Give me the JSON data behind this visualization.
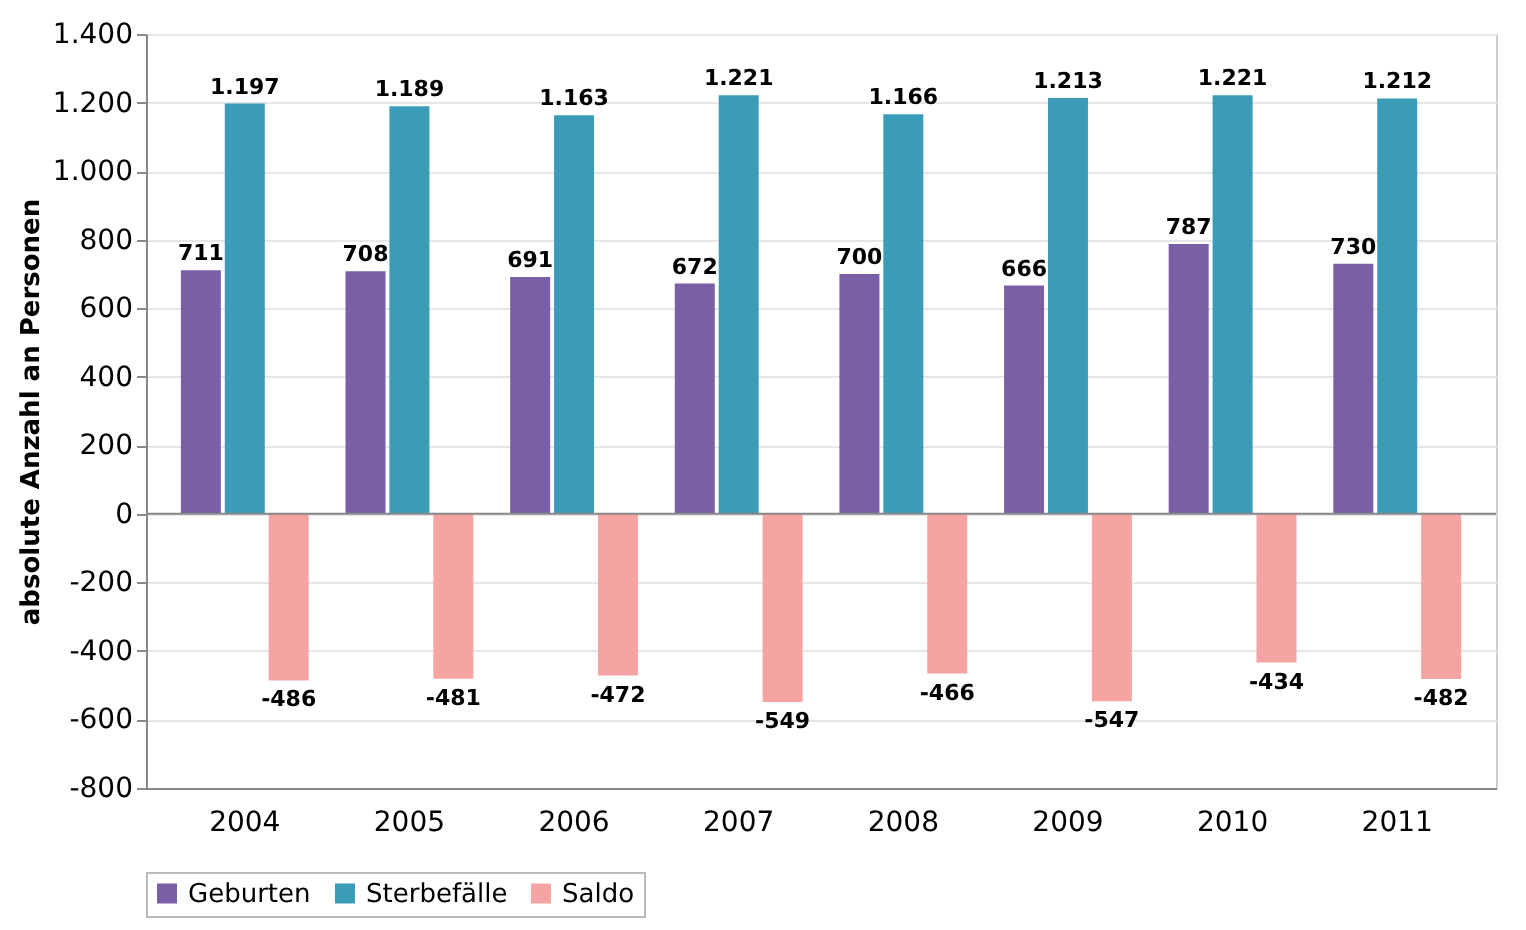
{
  "chart_data": {
    "type": "bar",
    "ylabel": "absolute Anzahl an Personen",
    "categories": [
      "2004",
      "2005",
      "2006",
      "2007",
      "2008",
      "2009",
      "2010",
      "2011"
    ],
    "series": [
      {
        "name": "Geburten",
        "color": "#7a5fa6",
        "values": [
          711,
          708,
          691,
          672,
          700,
          666,
          787,
          730
        ],
        "value_labels": [
          "711",
          "708",
          "691",
          "672",
          "700",
          "666",
          "787",
          "730"
        ]
      },
      {
        "name": "Sterbefälle",
        "color": "#3b9cb8",
        "values": [
          1197,
          1189,
          1163,
          1221,
          1166,
          1213,
          1221,
          1212
        ],
        "value_labels": [
          "1.197",
          "1.189",
          "1.163",
          "1.221",
          "1.166",
          "1.213",
          "1.221",
          "1.212"
        ]
      },
      {
        "name": "Saldo",
        "color": "#f5a3a3",
        "values": [
          -486,
          -481,
          -472,
          -549,
          -466,
          -547,
          -434,
          -482
        ],
        "value_labels": [
          "-486",
          "-481",
          "-472",
          "-549",
          "-466",
          "-547",
          "-434",
          "-482"
        ]
      }
    ],
    "ylim": [
      -800,
      1400
    ],
    "yticks": [
      {
        "value": -800,
        "label": "-800"
      },
      {
        "value": -600,
        "label": "-600"
      },
      {
        "value": -400,
        "label": "-400"
      },
      {
        "value": -200,
        "label": "-200"
      },
      {
        "value": 0,
        "label": "0"
      },
      {
        "value": 200,
        "label": "200"
      },
      {
        "value": 400,
        "label": "400"
      },
      {
        "value": 600,
        "label": "600"
      },
      {
        "value": 800,
        "label": "800"
      },
      {
        "value": 1000,
        "label": "1.000"
      },
      {
        "value": 1200,
        "label": "1.200"
      },
      {
        "value": 1400,
        "label": "1.400"
      }
    ],
    "grid": "y",
    "legend": "bottom"
  }
}
